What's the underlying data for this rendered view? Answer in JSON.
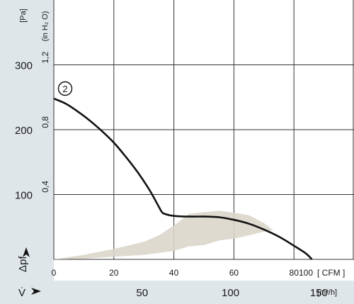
{
  "chart_data": {
    "type": "line",
    "title": "",
    "units": {
      "pressure_pa": "[Pa]",
      "pressure_inh2o": "(in H₂ O)",
      "flow_cfm": "[ CFM ]",
      "flow_m3h": "[m³/h]"
    },
    "axis_symbols": {
      "y": "Δpf",
      "x": "V̇"
    },
    "y_pa": {
      "min": 0,
      "max": 400,
      "ticks": [
        100,
        200,
        300
      ]
    },
    "y_inh2o": {
      "ticks": [
        "0,4",
        "0,8",
        "1,2"
      ],
      "values": [
        0.4,
        0.8,
        1.2
      ]
    },
    "x_cfm": {
      "min": 0,
      "max": 100,
      "ticks": [
        0,
        20,
        40,
        60,
        80
      ],
      "end_label": "100",
      "grid": [
        0,
        20,
        40,
        60,
        80
      ]
    },
    "x_m3h": {
      "ticks": [
        50,
        100,
        150
      ]
    },
    "grid": true,
    "curve_label": "2",
    "series": [
      {
        "name": "",
        "x": [
          0,
          4,
          8,
          12,
          16,
          20,
          24,
          28,
          32,
          35,
          36,
          37,
          40,
          45,
          50,
          55,
          60,
          65,
          70,
          75,
          80,
          84,
          86
        ],
        "y": [
          248,
          240,
          228,
          214,
          198,
          180,
          158,
          134,
          106,
          81,
          73,
          70,
          67,
          66,
          66,
          65,
          61,
          55,
          46,
          35,
          21,
          9,
          0
        ]
      }
    ],
    "operating_range": {
      "upper": {
        "x": [
          0,
          10,
          20,
          30,
          35,
          40,
          45,
          50,
          55,
          60,
          65,
          70,
          73
        ],
        "y": [
          0,
          7,
          16,
          27,
          37,
          52,
          70,
          73,
          75,
          72,
          68,
          56,
          45
        ]
      },
      "lower": {
        "x": [
          73,
          70,
          65,
          60,
          55,
          50,
          45,
          40,
          30,
          20,
          10,
          0
        ],
        "y": [
          45,
          43,
          37,
          32,
          29,
          22,
          20,
          13,
          7,
          4,
          1,
          0
        ]
      }
    }
  }
}
